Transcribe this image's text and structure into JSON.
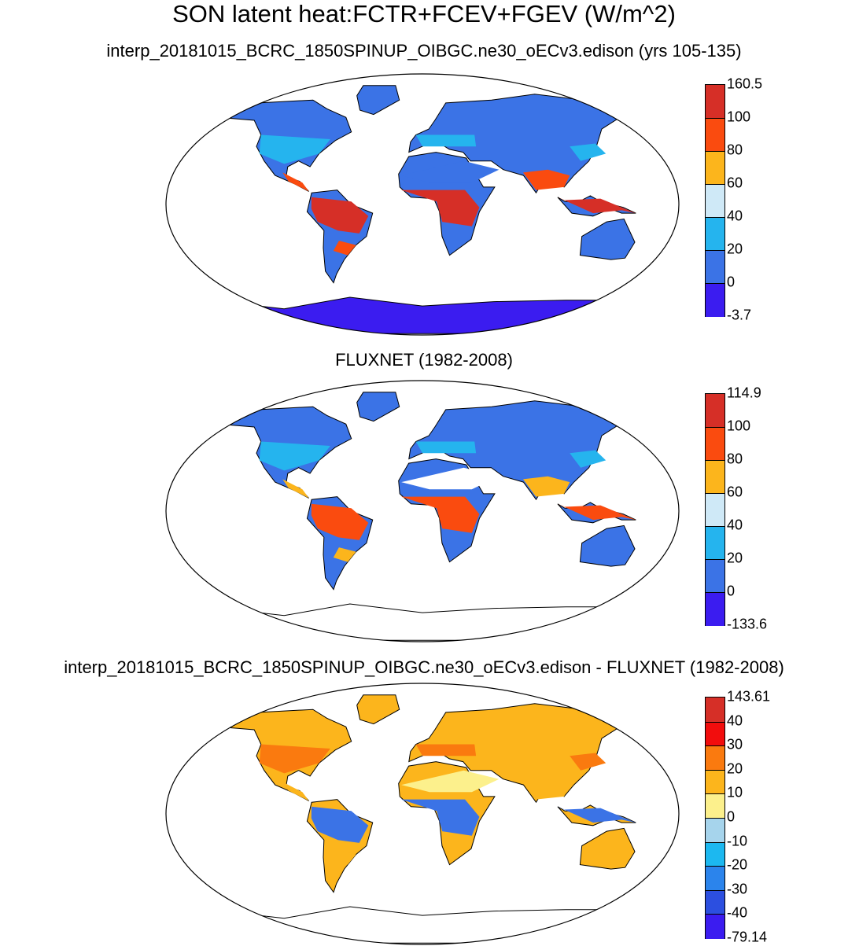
{
  "title": "SON latent heat:FCTR+FCEV+FGEV (W/m^2)",
  "panels": [
    {
      "subtitle": "interp_20181015_BCRC_1850SPINUP_OIBGC.ne30_oECv3.edison (yrs 105-135)",
      "colorbar": {
        "labels": [
          "160.5",
          "100",
          "80",
          "60",
          "40",
          "20",
          "0",
          "-3.7"
        ],
        "colors": [
          "#d62f27",
          "#fa4b0f",
          "#fcb51c",
          "#cfe9f7",
          "#25b4ee",
          "#3b73e6",
          "#3b1cf0"
        ]
      },
      "map_colors": {
        "north": "#3b73e6",
        "mid": "#25b4ee",
        "tropics": "#d62f27",
        "subtropics": "#fa4b0f",
        "dry": "#3b73e6",
        "ice": "#3b1cf0"
      }
    },
    {
      "subtitle": "FLUXNET (1982-2008)",
      "colorbar": {
        "labels": [
          "114.9",
          "100",
          "80",
          "60",
          "40",
          "20",
          "0",
          "-133.6"
        ],
        "colors": [
          "#d62f27",
          "#fa4b0f",
          "#fcb51c",
          "#cfe9f7",
          "#25b4ee",
          "#3b73e6",
          "#3b1cf0"
        ]
      },
      "map_colors": {
        "north": "#3b73e6",
        "mid": "#25b4ee",
        "tropics": "#fa4b0f",
        "subtropics": "#fcb51c",
        "dry": "#ffffff",
        "ice": "#ffffff"
      }
    },
    {
      "subtitle": "interp_20181015_BCRC_1850SPINUP_OIBGC.ne30_oECv3.edison - FLUXNET (1982-2008)",
      "colorbar": {
        "labels": [
          "143.61",
          "40",
          "30",
          "20",
          "10",
          "0",
          "-10",
          "-20",
          "-30",
          "-40",
          "-79.14"
        ],
        "colors": [
          "#d62f27",
          "#f20d0d",
          "#fa7a0f",
          "#fcb51c",
          "#fcf08c",
          "#a6d4ec",
          "#1cb8f0",
          "#2b84ec",
          "#2c4fe0",
          "#3b1cf0"
        ]
      },
      "map_colors": {
        "north": "#fcb51c",
        "mid": "#fa7a0f",
        "tropics": "#3b73e6",
        "subtropics": "#fcb51c",
        "dry": "#fcf08c",
        "ice": "#ffffff"
      }
    }
  ]
}
